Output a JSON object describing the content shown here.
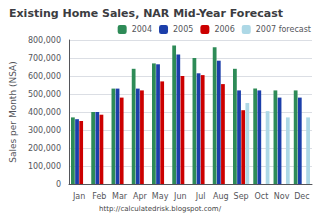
{
  "chart_data": {
    "type": "bar",
    "title": "Existing Home Sales, NAR Mid-Year Forecast",
    "ylabel": "Sales per Month (NSA)",
    "annotations": [
      "http://calculatedrisk.blogspot.com/"
    ],
    "categories": [
      "Jan",
      "Feb",
      "Mar",
      "Apr",
      "May",
      "Jun",
      "Jul",
      "Aug",
      "Sep",
      "Oct",
      "Nov",
      "Dec"
    ],
    "series": [
      {
        "name": "2004",
        "color": "#2e8b57",
        "values": [
          370000,
          400000,
          530000,
          640000,
          670000,
          770000,
          700000,
          760000,
          640000,
          530000,
          520000,
          520000
        ]
      },
      {
        "name": "2005",
        "color": "#1c3faa",
        "values": [
          360000,
          400000,
          530000,
          530000,
          665000,
          720000,
          615000,
          685000,
          520000,
          520000,
          480000,
          480000
        ]
      },
      {
        "name": "2006",
        "color": "#cc0000",
        "values": [
          350000,
          385000,
          480000,
          520000,
          570000,
          600000,
          605000,
          555000,
          410000,
          0,
          0,
          0
        ]
      },
      {
        "name": "2007 forecast",
        "color": "#add8e6",
        "values": [
          0,
          0,
          0,
          0,
          0,
          0,
          0,
          0,
          450000,
          405000,
          370000,
          370000
        ]
      }
    ],
    "ylim": [
      0,
      800000
    ],
    "yticks": [
      0,
      {
        "value": 100000,
        "label": "100,000"
      },
      {
        "value": 200000,
        "label": "200,000"
      },
      {
        "value": 300000,
        "label": "300,000"
      },
      {
        "value": 400000,
        "label": "400,000"
      },
      {
        "value": 500000,
        "label": "500,000"
      },
      {
        "value": 600000,
        "label": "600,000"
      },
      {
        "value": 700000,
        "label": "700,000"
      },
      {
        "value": 800000,
        "label": "800,000"
      }
    ],
    "grid": true,
    "legend": "upper right"
  }
}
